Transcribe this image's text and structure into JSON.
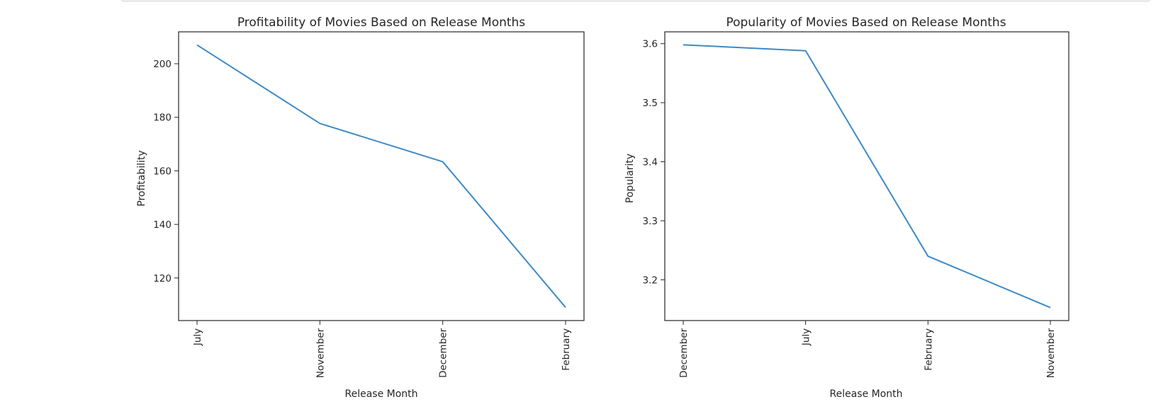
{
  "colors": {
    "series": "#3d8ac5",
    "axes": "#262626"
  },
  "chart_data": [
    {
      "type": "line",
      "title": "Profitability of Movies Based on Release Months",
      "xlabel": "Release Month",
      "ylabel": "Profitability",
      "categories": [
        "July",
        "November",
        "December",
        "February"
      ],
      "values": [
        207.0,
        177.7,
        163.4,
        109.0
      ],
      "yticks": [
        120,
        140,
        160,
        180,
        200
      ],
      "ytick_labels": [
        "120",
        "140",
        "160",
        "180",
        "200"
      ],
      "ylim": [
        104.1,
        211.9
      ],
      "grid": false,
      "legend": "none"
    },
    {
      "type": "line",
      "title": "Popularity of Movies Based on Release Months",
      "xlabel": "Release Month",
      "ylabel": "Popularity",
      "categories": [
        "December",
        "July",
        "February",
        "November"
      ],
      "values": [
        3.598,
        3.588,
        3.24,
        3.153
      ],
      "yticks": [
        3.2,
        3.3,
        3.4,
        3.5,
        3.6
      ],
      "ytick_labels": [
        "3.2",
        "3.3",
        "3.4",
        "3.5",
        "3.6"
      ],
      "ylim": [
        3.131,
        3.62
      ],
      "grid": false,
      "legend": "none"
    }
  ]
}
